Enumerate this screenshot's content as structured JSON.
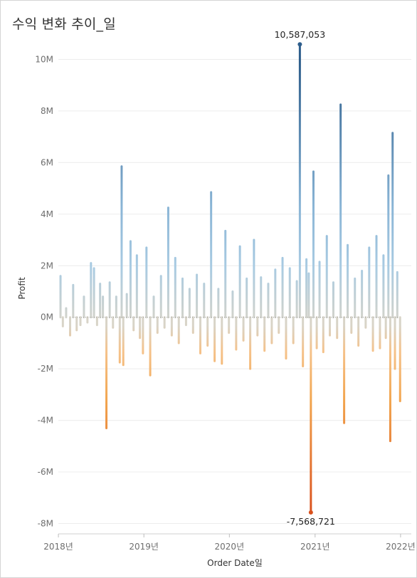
{
  "chart_data": {
    "type": "bar",
    "title": "수익 변화 추이_일",
    "xlabel": "Order Date일",
    "ylabel": "Profit",
    "ylim": [
      -8400000,
      11200000
    ],
    "xlim": [
      "2017-11-01",
      "2022-02-28"
    ],
    "yticks": [
      {
        "value": 10000000,
        "label": "10M"
      },
      {
        "value": 8000000,
        "label": "8M"
      },
      {
        "value": 6000000,
        "label": "6M"
      },
      {
        "value": 4000000,
        "label": "4M"
      },
      {
        "value": 2000000,
        "label": "2M"
      },
      {
        "value": 0,
        "label": "0M"
      },
      {
        "value": -2000000,
        "label": "-2M"
      },
      {
        "value": -4000000,
        "label": "-4M"
      },
      {
        "value": -6000000,
        "label": "-6M"
      },
      {
        "value": -8000000,
        "label": "-8M"
      }
    ],
    "xticks": [
      {
        "value": "2018-01-01",
        "label": "2018년"
      },
      {
        "value": "2019-01-01",
        "label": "2019년"
      },
      {
        "value": "2020-01-01",
        "label": "2020년"
      },
      {
        "value": "2021-01-01",
        "label": "2021년"
      },
      {
        "value": "2022-01-01",
        "label": "2022년"
      }
    ],
    "grid": true,
    "colors": {
      "positive_high": "#2e5e8c",
      "positive_mid": "#9ec3de",
      "neutral": "#d8d4c8",
      "negative_mid": "#f6b66a",
      "negative_high": "#d9501c",
      "zero_line": "#999999",
      "grid": "#ececec"
    },
    "annotations": [
      {
        "date": "2020-10-28",
        "value": 10587053,
        "label": "10,587,053"
      },
      {
        "date": "2020-12-14",
        "value": -7568721,
        "label": "-7,568,721"
      }
    ],
    "x": [
      "2018-01-10",
      "2018-01-20",
      "2018-02-03",
      "2018-02-20",
      "2018-03-05",
      "2018-03-20",
      "2018-04-05",
      "2018-04-20",
      "2018-05-05",
      "2018-05-20",
      "2018-06-02",
      "2018-06-15",
      "2018-06-28",
      "2018-07-10",
      "2018-07-25",
      "2018-08-08",
      "2018-08-22",
      "2018-09-05",
      "2018-09-20",
      "2018-09-28",
      "2018-10-05",
      "2018-10-20",
      "2018-11-05",
      "2018-11-18",
      "2018-12-02",
      "2018-12-15",
      "2018-12-28",
      "2019-01-12",
      "2019-01-28",
      "2019-02-12",
      "2019-02-28",
      "2019-03-15",
      "2019-03-30",
      "2019-04-15",
      "2019-04-30",
      "2019-05-15",
      "2019-05-30",
      "2019-06-15",
      "2019-06-30",
      "2019-07-15",
      "2019-07-30",
      "2019-08-15",
      "2019-08-30",
      "2019-09-15",
      "2019-09-30",
      "2019-10-15",
      "2019-10-30",
      "2019-11-15",
      "2019-11-30",
      "2019-12-15",
      "2019-12-30",
      "2020-01-15",
      "2020-01-30",
      "2020-02-15",
      "2020-03-01",
      "2020-03-15",
      "2020-03-30",
      "2020-04-15",
      "2020-04-30",
      "2020-05-15",
      "2020-05-30",
      "2020-06-15",
      "2020-06-30",
      "2020-07-15",
      "2020-07-30",
      "2020-08-15",
      "2020-08-30",
      "2020-09-15",
      "2020-09-30",
      "2020-10-15",
      "2020-10-28",
      "2020-11-10",
      "2020-11-25",
      "2020-12-05",
      "2020-12-14",
      "2020-12-25",
      "2021-01-08",
      "2021-01-20",
      "2021-02-05",
      "2021-02-20",
      "2021-03-05",
      "2021-03-20",
      "2021-04-05",
      "2021-04-20",
      "2021-05-05",
      "2021-05-20",
      "2021-06-05",
      "2021-06-20",
      "2021-07-05",
      "2021-07-20",
      "2021-08-05",
      "2021-08-20",
      "2021-09-05",
      "2021-09-20",
      "2021-10-05",
      "2021-10-20",
      "2021-10-30",
      "2021-11-10",
      "2021-11-18",
      "2021-11-28",
      "2021-12-08",
      "2021-12-18",
      "2021-12-30"
    ],
    "series": [
      {
        "values": [
          1600000,
          -350000,
          350000,
          -700000,
          1250000,
          -500000,
          -300000,
          800000,
          -200000,
          2100000,
          1900000,
          -300000,
          1300000,
          800000,
          -4300000,
          1350000,
          -400000,
          800000,
          -1750000,
          5850000,
          -1850000,
          900000,
          2950000,
          -500000,
          2400000,
          -800000,
          -1400000,
          2700000,
          -2250000,
          800000,
          -600000,
          1600000,
          -400000,
          4250000,
          -700000,
          2300000,
          -1000000,
          1500000,
          -300000,
          1100000,
          -600000,
          1650000,
          -1400000,
          1300000,
          -1100000,
          4850000,
          -1700000,
          1100000,
          -1800000,
          3350000,
          -600000,
          1000000,
          -1250000,
          2750000,
          -900000,
          1500000,
          -2000000,
          3000000,
          -700000,
          1550000,
          -1300000,
          1300000,
          -1000000,
          1850000,
          -600000,
          2300000,
          -1600000,
          1900000,
          -1000000,
          1400000,
          10587053,
          -1900000,
          2250000,
          1700000,
          -7568721,
          5650000,
          -1200000,
          2150000,
          -1350000,
          3150000,
          -700000,
          1350000,
          -800000,
          8250000,
          -4100000,
          2800000,
          -600000,
          1500000,
          -1100000,
          1800000,
          -400000,
          2700000,
          -1300000,
          3150000,
          -1200000,
          2400000,
          -800000,
          5500000,
          -4800000,
          7150000,
          -2000000,
          1750000,
          -3250000
        ]
      }
    ]
  }
}
